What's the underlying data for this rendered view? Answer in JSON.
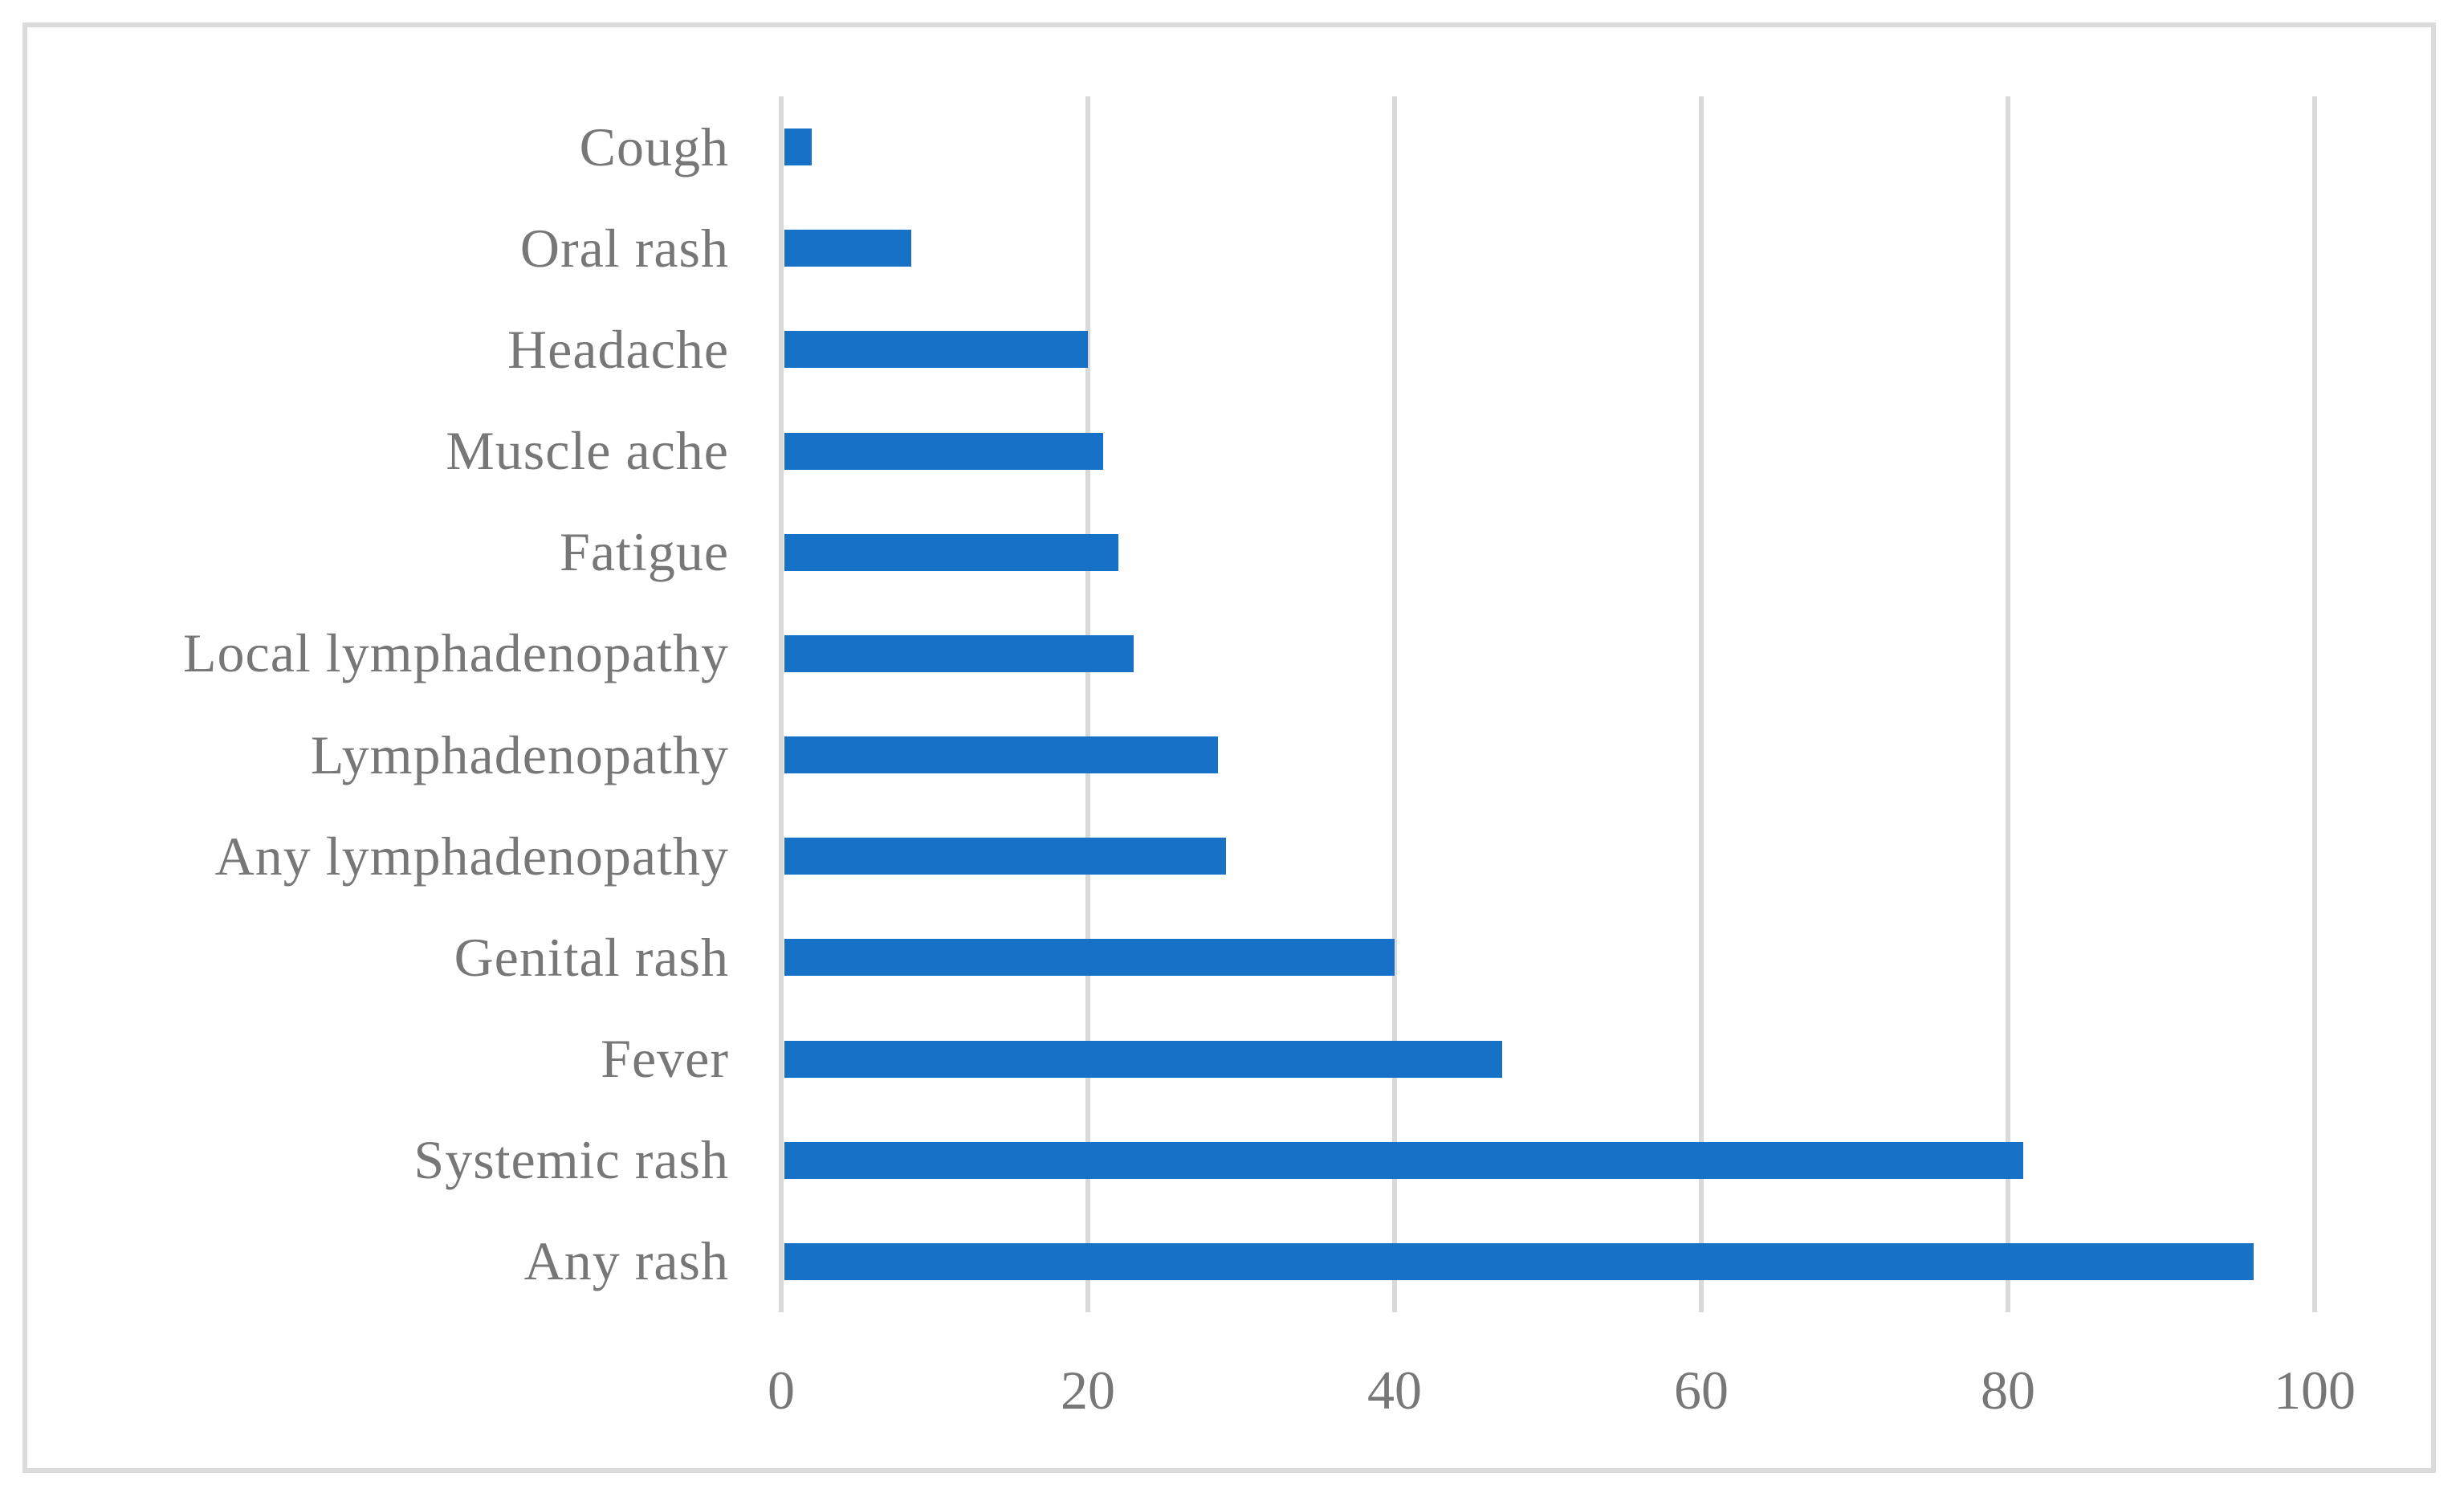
{
  "figure": {
    "background": "#FFFFFF",
    "border_color": "#DBDBDB"
  },
  "chart_data": {
    "type": "bar",
    "orientation": "horizontal",
    "title": "",
    "xlabel": "",
    "ylabel": "",
    "legend": false,
    "grid": true,
    "categories_top_to_bottom": [
      "Cough",
      "Oral rash",
      "Headache",
      "Muscle ache",
      "Fatigue",
      "Local lymphadenopathy",
      "Lymphadenopathy",
      "Any lymphadenopathy",
      "Genital rash",
      "Fever",
      "Systemic rash",
      "Any rash"
    ],
    "values": [
      2,
      8.5,
      20,
      21,
      22,
      23,
      28.5,
      29,
      40,
      47,
      81,
      96
    ],
    "xlim": [
      0,
      100
    ],
    "x_ticks": [
      0,
      20,
      40,
      60,
      80,
      100
    ],
    "x_tick_labels": [
      "0",
      "20",
      "40",
      "60",
      "80",
      "100"
    ],
    "bar_color": "#1772C7",
    "gridline_color": "#D9D9D9",
    "tick_label_color": "#777777",
    "category_label_color": "#777777"
  }
}
